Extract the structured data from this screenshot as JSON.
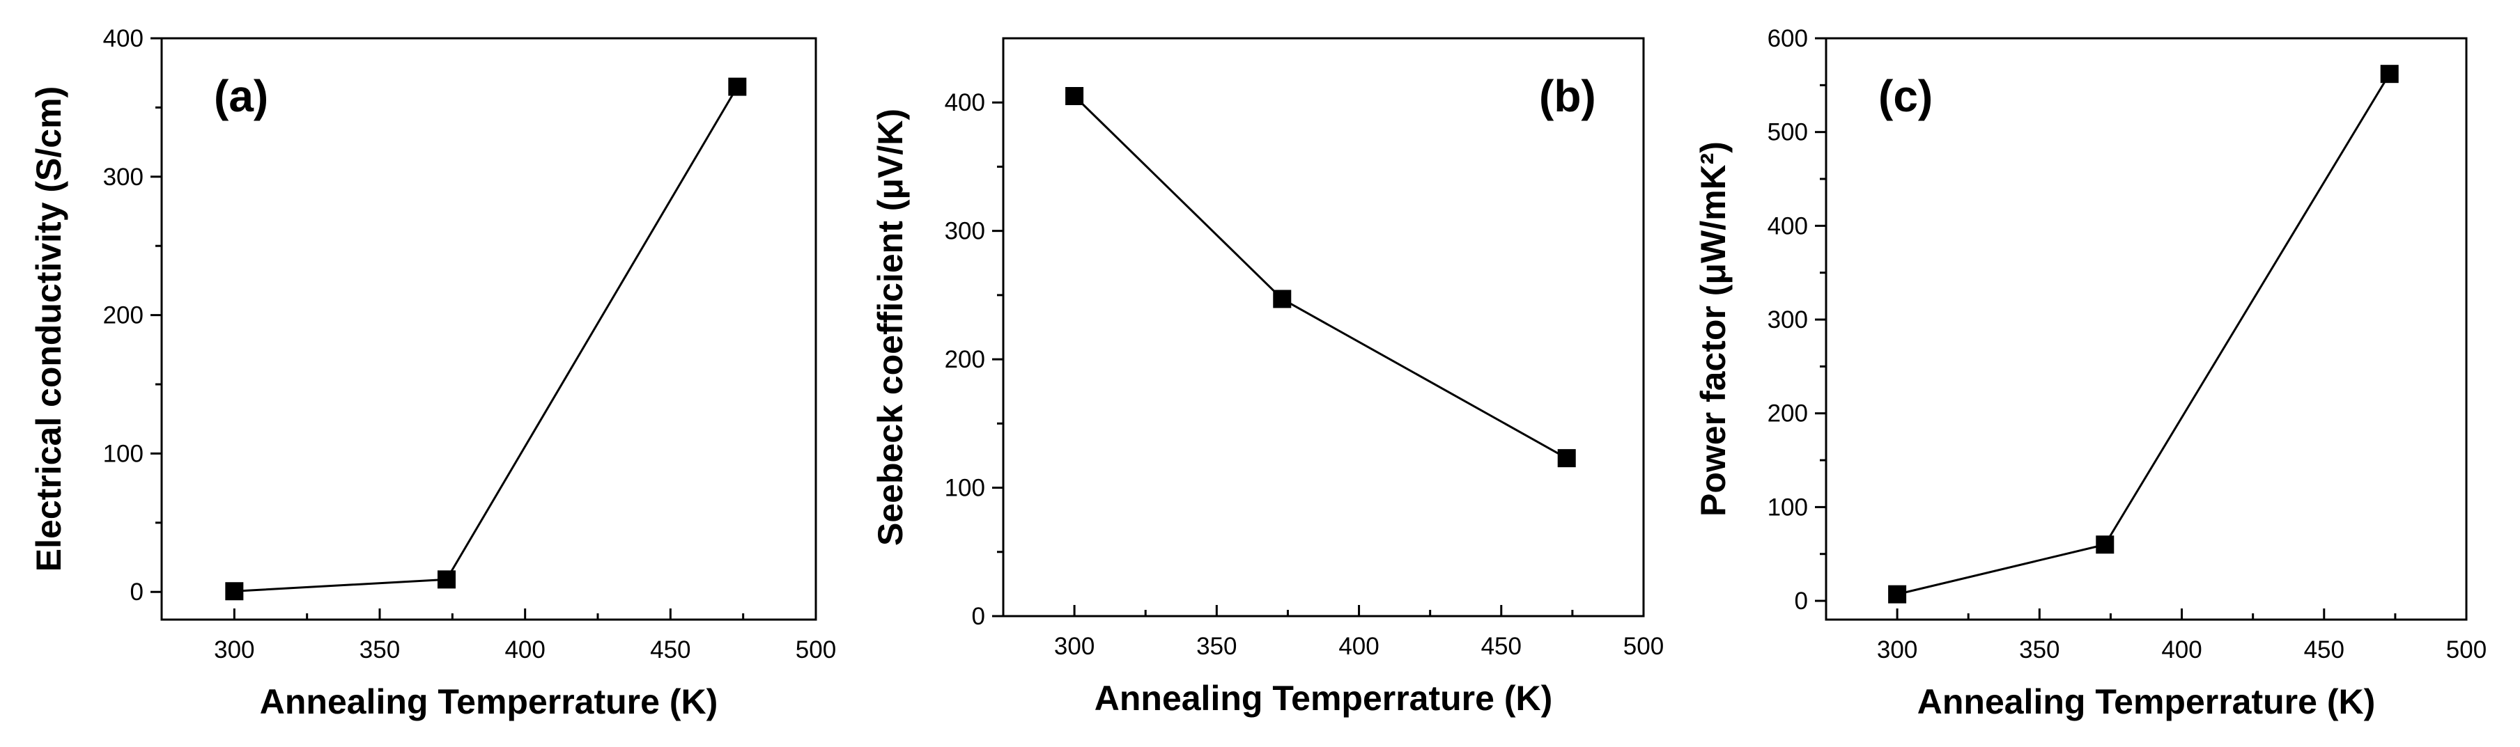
{
  "figure": {
    "panels": [
      "a",
      "b",
      "c"
    ]
  },
  "chart_data": [
    {
      "type": "line",
      "panel_label": "(a)",
      "title": "",
      "xlabel": "Annealing Temperrature (K)",
      "ylabel": "Electrical conductivity (S/cm)",
      "xlim": [
        275,
        500
      ],
      "ylim": [
        -20,
        400
      ],
      "xticks": [
        300,
        350,
        400,
        450,
        500
      ],
      "yticks": [
        0,
        100,
        200,
        300,
        400
      ],
      "x": [
        300,
        373,
        473
      ],
      "series": [
        {
          "name": "Electrical conductivity",
          "values": [
            0.5,
            9,
            365
          ],
          "marker": "square",
          "color": "#000000"
        }
      ]
    },
    {
      "type": "line",
      "panel_label": "(b)",
      "title": "",
      "xlabel": "Annealing Temperrature (K)",
      "ylabel": "Seebeck coefficient (μV/K)",
      "xlim": [
        275,
        500
      ],
      "ylim": [
        0,
        450
      ],
      "xticks": [
        300,
        350,
        400,
        450,
        500
      ],
      "yticks": [
        0,
        100,
        200,
        300,
        400
      ],
      "x": [
        300,
        373,
        473
      ],
      "series": [
        {
          "name": "Seebeck coefficient",
          "values": [
            405,
            247,
            123
          ],
          "marker": "square",
          "color": "#000000"
        }
      ]
    },
    {
      "type": "line",
      "panel_label": "(c)",
      "title": "",
      "xlabel": "Annealing Temperrature (K)",
      "ylabel": "Power factor (μW/mK²)",
      "xlim": [
        275,
        500
      ],
      "ylim": [
        -20,
        600
      ],
      "xticks": [
        300,
        350,
        400,
        450,
        500
      ],
      "yticks": [
        0,
        100,
        200,
        300,
        400,
        500,
        600
      ],
      "x": [
        300,
        373,
        473
      ],
      "series": [
        {
          "name": "Power factor",
          "values": [
            7,
            60,
            562
          ],
          "marker": "square",
          "color": "#000000"
        }
      ]
    }
  ]
}
